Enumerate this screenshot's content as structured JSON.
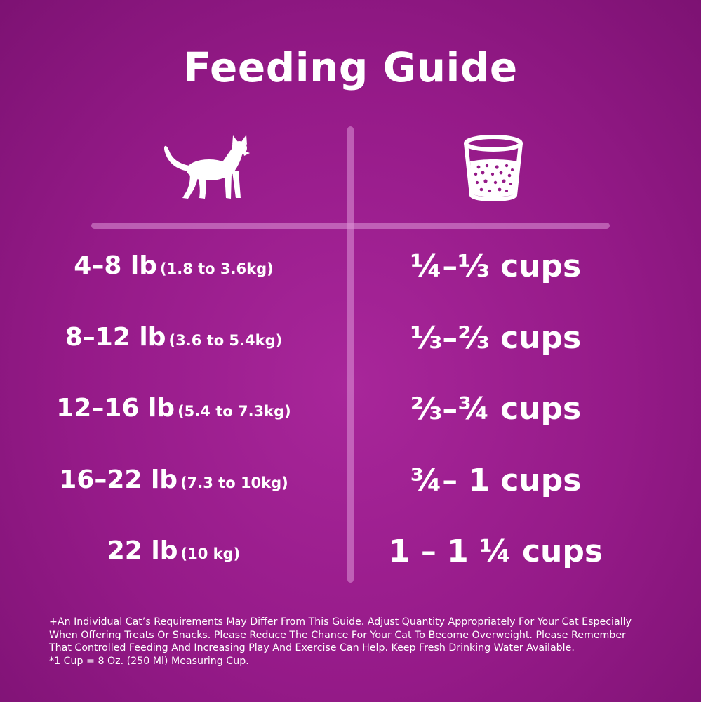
{
  "title": "Feeding Guide",
  "icons": {
    "left_column": "cat-icon",
    "right_column": "measuring-cup-icon"
  },
  "rows": [
    {
      "weight_lb": "4–8 lb",
      "weight_kg": "(1.8 to 3.6kg)",
      "cups": "¼–⅓ cups"
    },
    {
      "weight_lb": "8–12 lb",
      "weight_kg": "(3.6 to 5.4kg)",
      "cups": "⅓–⅔ cups"
    },
    {
      "weight_lb": "12–16 lb",
      "weight_kg": "(5.4 to 7.3kg)",
      "cups": "⅔–¾ cups"
    },
    {
      "weight_lb": "16–22 lb",
      "weight_kg": "(7.3 to 10kg)",
      "cups": "¾– 1 cups"
    },
    {
      "weight_lb": "22 lb",
      "weight_kg": "(10 kg)",
      "cups": "1 – 1 ¼ cups"
    }
  ],
  "footnote": {
    "line1": "+An Individual Cat’s Requirements May Differ From This Guide.  Adjust Quantity Appropriately For Your Cat Especially",
    "line2": "When Offering Treats Or Snacks.  Please Reduce The Chance For Your Cat To Become Overweight.  Please Remember",
    "line3": "That Controlled Feeding And Increasing Play And Exercise Can Help.  Keep Fresh Drinking Water Available.",
    "line4": "*1 Cup = 8 Oz. (250 Ml) Measuring Cup."
  },
  "colors": {
    "background": "#951a88",
    "text": "#ffffff",
    "divider": "#d996d3"
  }
}
